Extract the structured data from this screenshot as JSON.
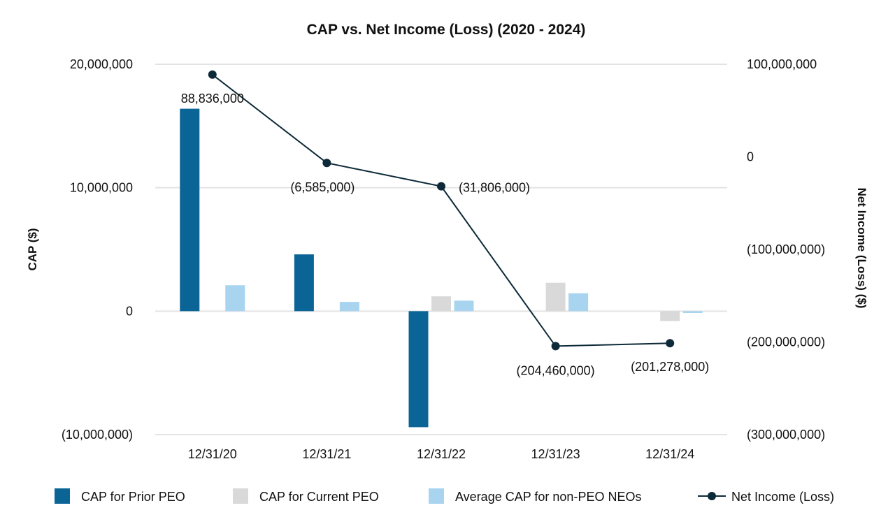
{
  "chart_data": {
    "type": "bar",
    "title": "CAP vs. Net Income (Loss) (2020 - 2024)",
    "categories": [
      "12/31/20",
      "12/31/21",
      "12/31/22",
      "12/31/23",
      "12/31/24"
    ],
    "y_left": {
      "label": "CAP ($)",
      "range": [
        -10000000,
        20000000
      ],
      "ticks": [
        20000000,
        10000000,
        0,
        -10000000
      ],
      "tick_labels": [
        "20,000,000",
        "10,000,000",
        "0",
        "(10,000,000)"
      ]
    },
    "y_right": {
      "label": "Net Income (Loss) ($)",
      "range": [
        -300000000,
        100000000
      ],
      "ticks": [
        100000000,
        0,
        -100000000,
        -200000000,
        -300000000
      ],
      "tick_labels": [
        "100,000,000",
        "0",
        "(100,000,000)",
        "(200,000,000)",
        "(300,000,000)"
      ]
    },
    "series": [
      {
        "name": "CAP for Prior PEO",
        "kind": "bar",
        "axis": "left",
        "color": "#0a6496",
        "values": [
          16400000,
          4600000,
          -9400000,
          null,
          null
        ]
      },
      {
        "name": "CAP for Current PEO",
        "kind": "bar",
        "axis": "left",
        "color": "#d9d9d9",
        "values": [
          null,
          null,
          1200000,
          2300000,
          -800000
        ]
      },
      {
        "name": "Average CAP for non-PEO NEOs",
        "kind": "bar",
        "axis": "left",
        "color": "#a8d4f0",
        "values": [
          2100000,
          750000,
          850000,
          1450000,
          -150000
        ]
      },
      {
        "name": "Net Income (Loss)",
        "kind": "line",
        "axis": "right",
        "color": "#0d2a38",
        "values": [
          88836000,
          -6585000,
          -31806000,
          -204460000,
          -201278000
        ],
        "labels": [
          "88,836,000",
          "(6,585,000)",
          "(31,806,000)",
          "(204,460,000)",
          "(201,278,000)"
        ]
      }
    ],
    "grid": true,
    "legend_position": "bottom"
  }
}
